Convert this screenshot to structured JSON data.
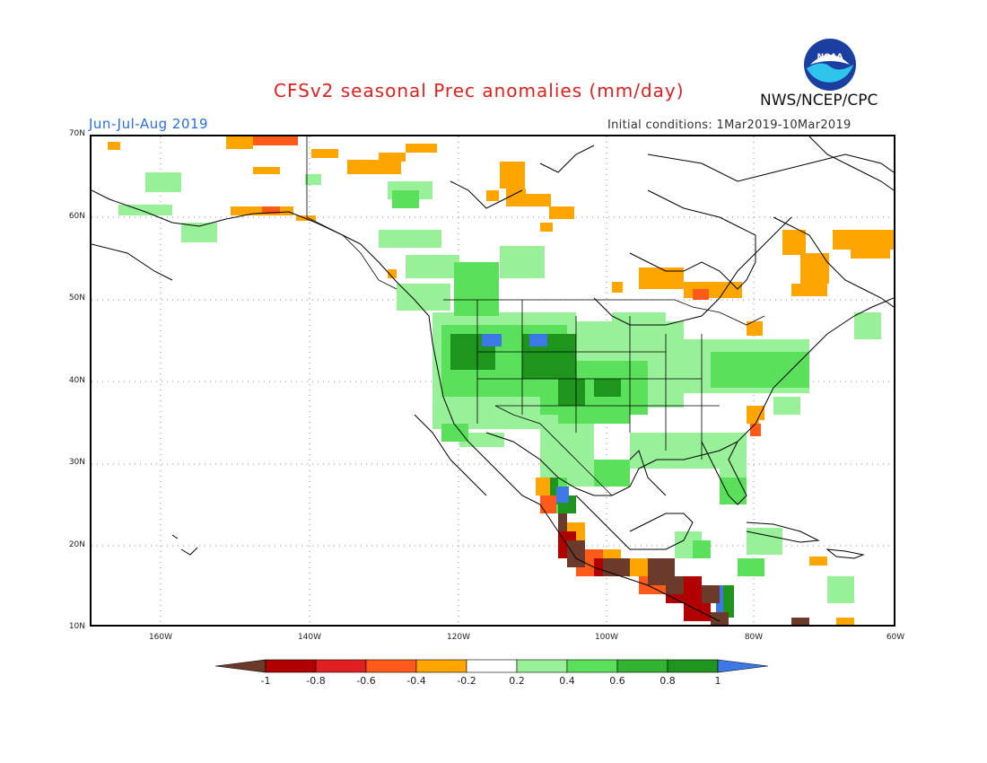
{
  "header": {
    "title": "CFSv2 seasonal Prec anomalies (mm/day)",
    "period": "Jun-Jul-Aug 2019",
    "init": "Initial conditions: 1Mar2019-10Mar2019",
    "agency": "NWS/NCEP/CPC",
    "logo_text": "NOAA"
  },
  "axes": {
    "lat_labels": [
      "70N",
      "60N",
      "50N",
      "40N",
      "30N",
      "20N",
      "10N"
    ],
    "lon_labels": [
      "160W",
      "140W",
      "120W",
      "100W",
      "80W",
      "60W"
    ]
  },
  "colorbar": {
    "labels": [
      "-1",
      "-0.8",
      "-0.6",
      "-0.4",
      "-0.2",
      "0.2",
      "0.4",
      "0.6",
      "0.8",
      "1"
    ],
    "colors": [
      "#6b3a2a",
      "#b00000",
      "#e02020",
      "#ff5a1a",
      "#ffa500",
      "#ffffff",
      "#98f098",
      "#5ae05a",
      "#32b432",
      "#1e961e",
      "#3c78e6"
    ]
  },
  "colors": {
    "dry_light": "#ffa500",
    "dry_mid": "#ff5a1a",
    "dry_strong": "#b00000",
    "dry_extreme": "#6b3a2a",
    "wet_light": "#98f098",
    "wet_mid": "#5ae05a",
    "wet_strong": "#1e961e",
    "wet_extreme": "#3c78e6"
  }
}
